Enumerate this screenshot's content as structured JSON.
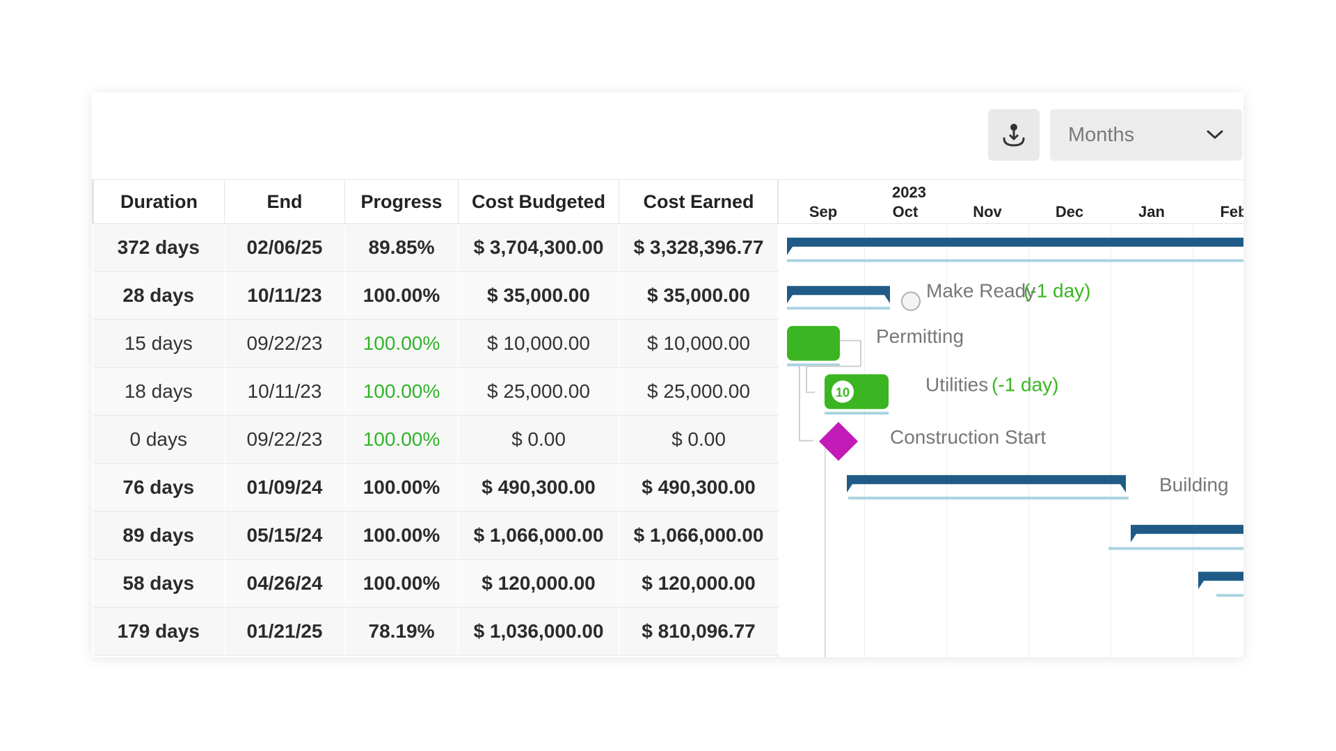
{
  "toolbar": {
    "download_icon": "download-icon",
    "zoom_value": "Months",
    "zoom_icon": "chevron-down-icon"
  },
  "grid": {
    "columns": [
      "Duration",
      "End",
      "Progress",
      "Cost Budgeted",
      "Cost Earned"
    ],
    "rows": [
      {
        "duration": "372 days",
        "end": "02/06/25",
        "progress": "89.85%",
        "budgeted": "$ 3,704,300.00",
        "earned": "$ 3,328,396.77",
        "bold": true,
        "progress_color": "blue"
      },
      {
        "duration": "28 days",
        "end": "10/11/23",
        "progress": "100.00%",
        "budgeted": "$ 35,000.00",
        "earned": "$ 35,000.00",
        "bold": true,
        "progress_color": "green"
      },
      {
        "duration": "15 days",
        "end": "09/22/23",
        "progress": "100.00%",
        "budgeted": "$ 10,000.00",
        "earned": "$ 10,000.00",
        "bold": false,
        "progress_color": "green"
      },
      {
        "duration": "18 days",
        "end": "10/11/23",
        "progress": "100.00%",
        "budgeted": "$ 25,000.00",
        "earned": "$ 25,000.00",
        "bold": false,
        "progress_color": "green"
      },
      {
        "duration": "0 days",
        "end": "09/22/23",
        "progress": "100.00%",
        "budgeted": "$ 0.00",
        "earned": "$ 0.00",
        "bold": false,
        "progress_color": "green"
      },
      {
        "duration": "76 days",
        "end": "01/09/24",
        "progress": "100.00%",
        "budgeted": "$ 490,300.00",
        "earned": "$ 490,300.00",
        "bold": true,
        "progress_color": "green"
      },
      {
        "duration": "89 days",
        "end": "05/15/24",
        "progress": "100.00%",
        "budgeted": "$ 1,066,000.00",
        "earned": "$ 1,066,000.00",
        "bold": true,
        "progress_color": "green"
      },
      {
        "duration": "58 days",
        "end": "04/26/24",
        "progress": "100.00%",
        "budgeted": "$ 120,000.00",
        "earned": "$ 120,000.00",
        "bold": true,
        "progress_color": "green"
      },
      {
        "duration": "179 days",
        "end": "01/21/25",
        "progress": "78.19%",
        "budgeted": "$ 1,036,000.00",
        "earned": "$ 810,096.77",
        "bold": true,
        "progress_color": "blue"
      }
    ]
  },
  "gantt": {
    "year": "2023",
    "months": [
      "Sep",
      "Oct",
      "Nov",
      "Dec",
      "Jan",
      "Feb"
    ],
    "tasks": [
      {
        "kind": "summary",
        "label": ""
      },
      {
        "kind": "summary",
        "label": "Make Ready",
        "variance": "(-1 day)"
      },
      {
        "kind": "task",
        "label": "Permitting",
        "variance": ""
      },
      {
        "kind": "task",
        "label": "Utilities",
        "variance": "(-1 day)",
        "badge": "10"
      },
      {
        "kind": "milestone",
        "label": "Construction Start",
        "variance": ""
      },
      {
        "kind": "summary",
        "label": "Building",
        "variance": ""
      },
      {
        "kind": "summary",
        "label": ""
      },
      {
        "kind": "summary",
        "label": ""
      },
      {
        "kind": "summary",
        "label": ""
      }
    ]
  },
  "colors": {
    "summary_bar": "#1f5b86",
    "baseline": "#a9d3e0",
    "task_bar": "#3bb521",
    "milestone": "#c31bb7",
    "variance_text": "#3bb521",
    "label_text": "#777777",
    "progress_blue": "#2a6f8c",
    "progress_green": "#2fb42a"
  }
}
